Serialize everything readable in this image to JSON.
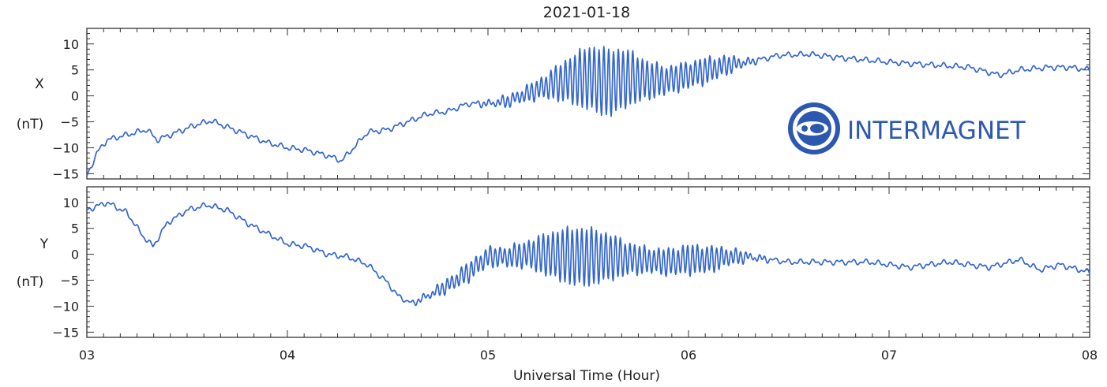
{
  "chart_data": {
    "type": "line",
    "title": "2021-01-18",
    "xlabel": "Universal Time (Hour)",
    "x_tick_labels": [
      "03",
      "04",
      "05",
      "06",
      "07",
      "08"
    ],
    "x_tick_values": [
      3,
      4,
      5,
      6,
      7,
      8
    ],
    "xlim": [
      3,
      8
    ],
    "line_color": "#3366cc",
    "logo": {
      "text": "INTERMAGNET",
      "color": "#2c58b0"
    },
    "panels": [
      {
        "label": "X",
        "unit": "(nT)",
        "ylim": [
          -16,
          13
        ],
        "yticks": [
          10,
          5,
          0,
          -5,
          -10,
          -15
        ],
        "ytick_labels": [
          "10",
          "5",
          "0",
          "−5",
          "−10",
          "−15"
        ],
        "series": [
          {
            "x": [
              3.0,
              3.05,
              3.1,
              3.2,
              3.3,
              3.35,
              3.45,
              3.55,
              3.62,
              3.7,
              3.8,
              3.9,
              4.0,
              4.1,
              4.2,
              4.27,
              4.33,
              4.4,
              4.5,
              4.6,
              4.7,
              4.8,
              4.9,
              5.0,
              5.1,
              5.2,
              5.3,
              5.4,
              5.5,
              5.6,
              5.7,
              5.8,
              5.9,
              6.0,
              6.1,
              6.2,
              6.3,
              6.45,
              6.6,
              6.8,
              7.0,
              7.2,
              7.4,
              7.55,
              7.65,
              7.8,
              7.9,
              8.0
            ],
            "y": [
              -15.5,
              -11,
              -8.5,
              -7.5,
              -6.5,
              -8.5,
              -7,
              -5.5,
              -4.8,
              -6,
              -7.5,
              -9,
              -10,
              -10.5,
              -11.5,
              -12.5,
              -10,
              -7,
              -6.5,
              -5,
              -3.5,
              -3,
              -1.5,
              -1.5,
              -1,
              0.5,
              2,
              3,
              3.5,
              2.5,
              3.5,
              3,
              3,
              4,
              5,
              6,
              6.5,
              7.8,
              8,
              7.2,
              6.5,
              6,
              5.5,
              4,
              5,
              5.5,
              5.5,
              5
            ]
          }
        ],
        "oscillation": {
          "start": 4.9,
          "end": 6.4,
          "peak": 6.5,
          "peak_center": 5.55,
          "period": 0.024
        }
      },
      {
        "label": "Y",
        "unit": "(nT)",
        "ylim": [
          -16,
          13
        ],
        "yticks": [
          10,
          5,
          0,
          -5,
          -10,
          -15
        ],
        "ytick_labels": [
          "10",
          "5",
          "0",
          "−5",
          "−10",
          "−15"
        ],
        "series": [
          {
            "x": [
              3.0,
              3.1,
              3.2,
              3.28,
              3.33,
              3.4,
              3.5,
              3.6,
              3.7,
              3.8,
              3.9,
              4.0,
              4.1,
              4.2,
              4.3,
              4.4,
              4.5,
              4.55,
              4.62,
              4.7,
              4.8,
              4.9,
              5.0,
              5.1,
              5.2,
              5.3,
              5.45,
              5.6,
              5.75,
              5.9,
              6.0,
              6.1,
              6.2,
              6.3,
              6.5,
              6.7,
              6.9,
              7.1,
              7.3,
              7.5,
              7.65,
              7.75,
              7.85,
              8.0
            ],
            "y": [
              8.5,
              10,
              8,
              3.5,
              1.5,
              6,
              8.5,
              9.5,
              8.5,
              6,
              4,
              2,
              1.5,
              0,
              -0.5,
              -2,
              -5.5,
              -8,
              -9.5,
              -8,
              -6,
              -3.5,
              -0.5,
              -0.5,
              0,
              0,
              -0.5,
              -0.5,
              -1,
              -1.5,
              -1,
              -1,
              -0.5,
              -0.5,
              -1.5,
              -1.5,
              -1.5,
              -2.5,
              -1.5,
              -2.5,
              -1,
              -3,
              -2,
              -3.5
            ]
          }
        ],
        "oscillation": {
          "start": 4.55,
          "end": 6.5,
          "peak": 5.5,
          "peak_center": 5.45,
          "period": 0.024
        }
      }
    ]
  }
}
